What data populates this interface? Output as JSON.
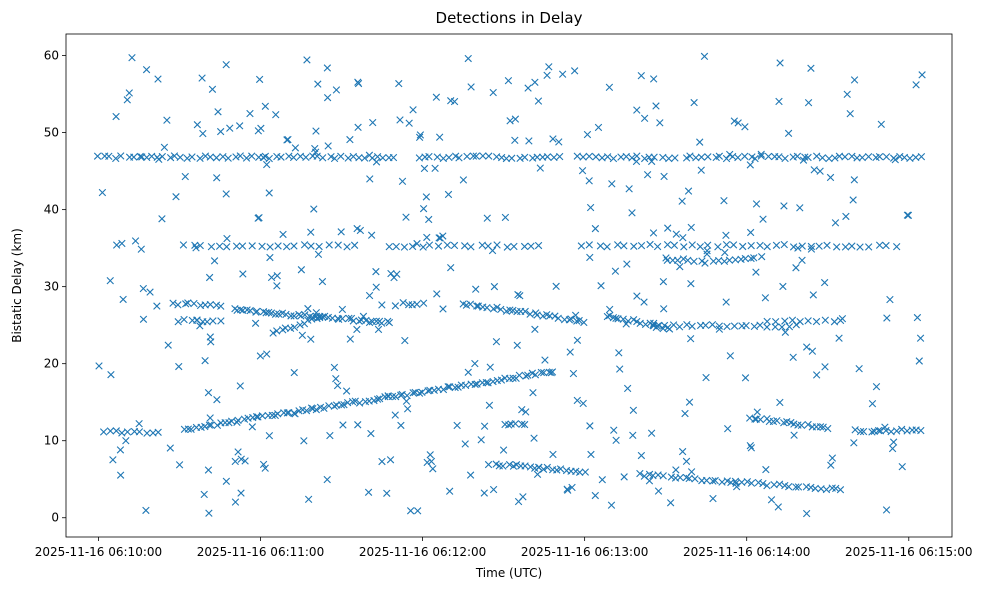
{
  "chart_data": {
    "type": "scatter",
    "title": "Detections in Delay",
    "xlabel": "Time (UTC)",
    "ylabel": "Bistatic Delay (km)",
    "x_unit": "seconds after 2025-11-16 06:10:00",
    "xlim": [
      -12,
      316
    ],
    "ylim": [
      -2.5,
      62.8
    ],
    "marker": "x",
    "marker_color": "#1f77b4",
    "grid": false,
    "legend": "none",
    "x_ticks": [
      {
        "value": 0,
        "label": "2025-11-16 06:10:00"
      },
      {
        "value": 60,
        "label": "2025-11-16 06:11:00"
      },
      {
        "value": 120,
        "label": "2025-11-16 06:12:00"
      },
      {
        "value": 180,
        "label": "2025-11-16 06:13:00"
      },
      {
        "value": 240,
        "label": "2025-11-16 06:14:00"
      },
      {
        "value": 300,
        "label": "2025-11-16 06:15:00"
      }
    ],
    "y_ticks": [
      {
        "value": 0,
        "label": "0"
      },
      {
        "value": 10,
        "label": "10"
      },
      {
        "value": 20,
        "label": "20"
      },
      {
        "value": 30,
        "label": "30"
      },
      {
        "value": 40,
        "label": "40"
      },
      {
        "value": 50,
        "label": "50"
      },
      {
        "value": 60,
        "label": "60"
      }
    ],
    "tracks": [
      {
        "name": "line-46.8km",
        "t_start": 0,
        "t_end": 305,
        "y_start": 46.8,
        "y_end": 46.8,
        "count": 140,
        "gaps": [
          [
            110,
            117
          ],
          [
            173,
            177
          ],
          [
            214,
            217
          ]
        ]
      },
      {
        "name": "line-35.3km",
        "t_start": 32,
        "t_end": 295,
        "y_start": 35.3,
        "y_end": 35.3,
        "count": 85,
        "gaps": [
          [
            95,
            105
          ],
          [
            165,
            178
          ]
        ]
      },
      {
        "name": "track-27.7km",
        "t_start": 28,
        "t_end": 45,
        "y_start": 27.8,
        "y_end": 27.5,
        "count": 10
      },
      {
        "name": "track-25.5km",
        "t_start": 30,
        "t_end": 45,
        "y_start": 25.6,
        "y_end": 25.4,
        "count": 8
      },
      {
        "name": "track-26.9-25.3km",
        "t_start": 50,
        "t_end": 108,
        "y_start": 27.0,
        "y_end": 25.3,
        "count": 45
      },
      {
        "name": "track-24.0-26.0km",
        "t_start": 65,
        "t_end": 82,
        "y_start": 24.0,
        "y_end": 26.0,
        "count": 12
      },
      {
        "name": "track-27.8-25.5km",
        "t_start": 135,
        "t_end": 180,
        "y_start": 27.8,
        "y_end": 25.5,
        "count": 30
      },
      {
        "name": "track-27.8km-short",
        "t_start": 113,
        "t_end": 120,
        "y_start": 27.8,
        "y_end": 27.8,
        "count": 5
      },
      {
        "name": "track-26.3-24.5km",
        "t_start": 188,
        "t_end": 212,
        "y_start": 26.3,
        "y_end": 24.5,
        "count": 16
      },
      {
        "name": "track-24.9km",
        "t_start": 205,
        "t_end": 258,
        "y_start": 24.9,
        "y_end": 24.9,
        "count": 22
      },
      {
        "name": "track-25.5km-late",
        "t_start": 248,
        "t_end": 275,
        "y_start": 25.5,
        "y_end": 25.5,
        "count": 10
      },
      {
        "name": "track-rising-11.5-19km",
        "t_start": 32,
        "t_end": 168,
        "y_start": 11.5,
        "y_end": 19.0,
        "count": 95
      },
      {
        "name": "track-33.5-33.2km",
        "t_start": 210,
        "t_end": 225,
        "y_start": 33.6,
        "y_end": 33.2,
        "count": 8
      },
      {
        "name": "track-33.2-33.8km",
        "t_start": 228,
        "t_end": 245,
        "y_start": 33.2,
        "y_end": 33.8,
        "count": 10
      },
      {
        "name": "track-13-11.5km",
        "t_start": 241,
        "t_end": 270,
        "y_start": 13.0,
        "y_end": 11.6,
        "count": 20
      },
      {
        "name": "track-11.3km",
        "t_start": 280,
        "t_end": 305,
        "y_start": 11.3,
        "y_end": 11.3,
        "count": 14
      },
      {
        "name": "track-12.2km",
        "t_start": 150,
        "t_end": 158,
        "y_start": 12.2,
        "y_end": 12.2,
        "count": 6
      },
      {
        "name": "track-7-6km",
        "t_start": 145,
        "t_end": 180,
        "y_start": 7.0,
        "y_end": 6.0,
        "count": 22
      },
      {
        "name": "track-5.5-3.5km",
        "t_start": 200,
        "t_end": 275,
        "y_start": 5.6,
        "y_end": 3.6,
        "count": 40
      },
      {
        "name": "track-11.2km-early",
        "t_start": 2,
        "t_end": 22,
        "y_start": 11.2,
        "y_end": 11.0,
        "count": 10
      }
    ],
    "clutter": {
      "t_range": [
        0,
        305
      ],
      "y_range": [
        0.5,
        60
      ],
      "count": 420,
      "seed": 7
    }
  }
}
